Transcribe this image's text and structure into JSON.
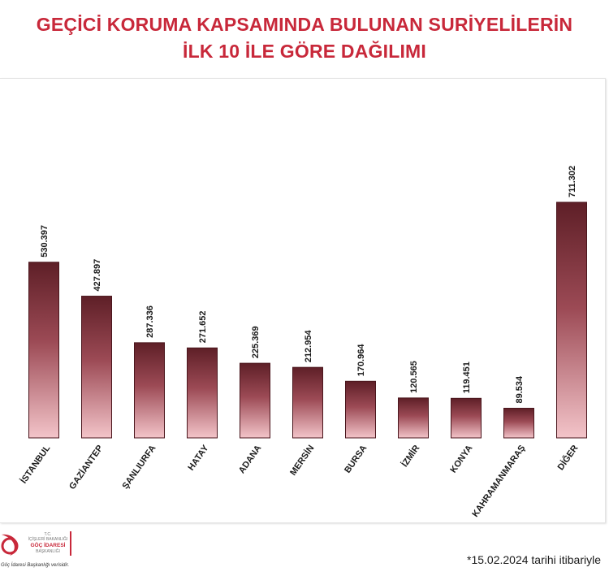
{
  "header": {
    "title_line1": "GEÇİCİ KORUMA KAPSAMINDA BULUNAN SURİYELİLERİN",
    "title_line2": "İLK 10 İLE GÖRE DAĞILIMI"
  },
  "chart_data": {
    "type": "bar",
    "title": "GEÇİCİ KORUMA KAPSAMINDA BULUNAN SURİYELİLERİN İLK 10 İLE GÖRE DAĞILIMI",
    "categories": [
      "İSTANBUL",
      "GAZİANTEP",
      "ŞANLIURFA",
      "HATAY",
      "ADANA",
      "MERSİN",
      "BURSA",
      "İZMİR",
      "KONYA",
      "KAHRAMANMARAŞ",
      "DİĞER"
    ],
    "values": [
      530397,
      427897,
      287336,
      271652,
      225369,
      212954,
      170964,
      120565,
      119451,
      89534,
      711302
    ],
    "value_labels": [
      "530.397",
      "427.897",
      "287.336",
      "271.652",
      "225.369",
      "212.954",
      "170.964",
      "120.565",
      "119.451",
      "89.534",
      "711.302"
    ],
    "xlabel": "",
    "ylabel": "",
    "ylim": [
      0,
      711302
    ],
    "grid": false,
    "legend": "none",
    "colors": {
      "bar_top": "#5e1f27",
      "bar_mid": "#9c4a55",
      "bar_bottom": "#f3c4c9",
      "label": "#1a1a1a"
    }
  },
  "logo": {
    "line1": "T.C.",
    "line2": "İÇİŞLERİ BAKANLIĞI",
    "line3": "GÖÇ İDARESİ",
    "line4": "BAŞKANLIĞI",
    "source": "Göç İdaresi Başkanlığı verisidir.",
    "color": "#c8283a"
  },
  "footer": {
    "note": "*15.02.2024 tarihi itibariyle"
  }
}
